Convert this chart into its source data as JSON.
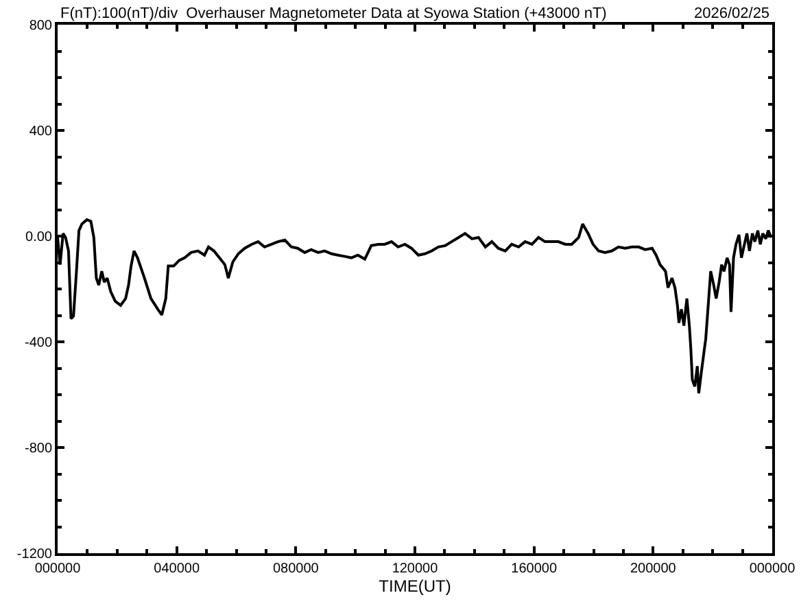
{
  "chart_data": {
    "type": "line",
    "title": "F(nT):100(nT)/div  Overhauser Magnetometer Data at Syowa Station (+43000 nT)",
    "annotations": [
      "2026/02/25"
    ],
    "xlabel": "TIME(UT)",
    "xlim": [
      "2026-02-25T00:00",
      "2026-02-26T00:00"
    ],
    "xticks": [
      {
        "value": "2026-02-25T00:00",
        "label": "000000"
      },
      {
        "value": "2026-02-25T04:00",
        "label": "040000"
      },
      {
        "value": "2026-02-25T08:00",
        "label": "080000"
      },
      {
        "value": "2026-02-25T12:00",
        "label": "120000"
      },
      {
        "value": "2026-02-25T16:00",
        "label": "160000"
      },
      {
        "value": "2026-02-25T20:00",
        "label": "200000"
      },
      {
        "value": "2026-02-26T00:00",
        "label": "000000"
      }
    ],
    "ylim": [
      -1200,
      800
    ],
    "yticks": [
      800,
      400,
      {
        "value": 0,
        "label": "0.00"
      },
      -400,
      -800,
      -1200
    ],
    "marker": "none",
    "line_style": "solid",
    "x": [
      "2026-02-25T00:00",
      "2026-02-25T00:05",
      "2026-02-25T00:11",
      "2026-02-25T00:16",
      "2026-02-25T00:22",
      "2026-02-25T00:27",
      "2026-02-25T00:32",
      "2026-02-25T00:38",
      "2026-02-25T00:43",
      "2026-02-25T00:49",
      "2026-02-25T00:59",
      "2026-02-25T01:07",
      "2026-02-25T01:13",
      "2026-02-25T01:18",
      "2026-02-25T01:23",
      "2026-02-25T01:29",
      "2026-02-25T01:34",
      "2026-02-25T01:40",
      "2026-02-25T01:47",
      "2026-02-25T01:56",
      "2026-02-25T02:07",
      "2026-02-25T02:17",
      "2026-02-25T02:23",
      "2026-02-25T02:28",
      "2026-02-25T02:34",
      "2026-02-25T02:41",
      "2026-02-25T02:55",
      "2026-02-25T03:08",
      "2026-02-25T03:22",
      "2026-02-25T03:30",
      "2026-02-25T03:38",
      "2026-02-25T03:43",
      "2026-02-25T03:54",
      "2026-02-25T04:05",
      "2026-02-25T04:16",
      "2026-02-25T04:29",
      "2026-02-25T04:43",
      "2026-02-25T04:56",
      "2026-02-25T05:04",
      "2026-02-25T05:15",
      "2026-02-25T05:26",
      "2026-02-25T05:37",
      "2026-02-25T05:44",
      "2026-02-25T05:53",
      "2026-02-25T06:04",
      "2026-02-25T06:17",
      "2026-02-25T06:31",
      "2026-02-25T06:44",
      "2026-02-25T06:57",
      "2026-02-25T07:11",
      "2026-02-25T07:24",
      "2026-02-25T07:38",
      "2026-02-25T07:51",
      "2026-02-25T08:04",
      "2026-02-25T08:18",
      "2026-02-25T08:31",
      "2026-02-25T08:45",
      "2026-02-25T08:58",
      "2026-02-25T09:12",
      "2026-02-25T09:25",
      "2026-02-25T09:39",
      "2026-02-25T09:52",
      "2026-02-25T10:05",
      "2026-02-25T10:19",
      "2026-02-25T10:27",
      "2026-02-25T10:32",
      "2026-02-25T10:46",
      "2026-02-25T10:59",
      "2026-02-25T11:13",
      "2026-02-25T11:26",
      "2026-02-25T11:40",
      "2026-02-25T11:53",
      "2026-02-25T12:07",
      "2026-02-25T12:20",
      "2026-02-25T12:34",
      "2026-02-25T12:47",
      "2026-02-25T13:01",
      "2026-02-25T13:14",
      "2026-02-25T13:28",
      "2026-02-25T13:41",
      "2026-02-25T13:55",
      "2026-02-25T14:08",
      "2026-02-25T14:22",
      "2026-02-25T14:35",
      "2026-02-25T14:48",
      "2026-02-25T15:02",
      "2026-02-25T15:15",
      "2026-02-25T15:29",
      "2026-02-25T15:42",
      "2026-02-25T15:56",
      "2026-02-25T16:09",
      "2026-02-25T16:22",
      "2026-02-25T16:36",
      "2026-02-25T16:49",
      "2026-02-25T17:03",
      "2026-02-25T17:16",
      "2026-02-25T17:30",
      "2026-02-25T17:38",
      "2026-02-25T17:49",
      "2026-02-25T17:59",
      "2026-02-25T18:10",
      "2026-02-25T18:23",
      "2026-02-25T18:37",
      "2026-02-25T18:50",
      "2026-02-25T19:04",
      "2026-02-25T19:17",
      "2026-02-25T19:31",
      "2026-02-25T19:44",
      "2026-02-25T19:58",
      "2026-02-25T20:06",
      "2026-02-25T20:14",
      "2026-02-25T20:25",
      "2026-02-25T20:30",
      "2026-02-25T20:38",
      "2026-02-25T20:44",
      "2026-02-25T20:49",
      "2026-02-25T20:52",
      "2026-02-25T20:57",
      "2026-02-25T21:02",
      "2026-02-25T21:08",
      "2026-02-25T21:13",
      "2026-02-25T21:16",
      "2026-02-25T21:19",
      "2026-02-25T21:24",
      "2026-02-25T21:29",
      "2026-02-25T21:32",
      "2026-02-25T21:37",
      "2026-02-25T21:43",
      "2026-02-25T21:46",
      "2026-02-25T21:51",
      "2026-02-25T21:56",
      "2026-02-25T22:02",
      "2026-02-25T22:07",
      "2026-02-25T22:13",
      "2026-02-25T22:18",
      "2026-02-25T22:23",
      "2026-02-25T22:29",
      "2026-02-25T22:34",
      "2026-02-25T22:37",
      "2026-02-25T22:42",
      "2026-02-25T22:47",
      "2026-02-25T22:53",
      "2026-02-25T22:58",
      "2026-02-25T23:04",
      "2026-02-25T23:09",
      "2026-02-25T23:14",
      "2026-02-25T23:20",
      "2026-02-25T23:25",
      "2026-02-25T23:31",
      "2026-02-25T23:36",
      "2026-02-25T23:41",
      "2026-02-25T23:47",
      "2026-02-25T23:52",
      "2026-02-25T23:58"
    ],
    "series": [
      {
        "color": "#000000",
        "values": [
          -5,
          -108,
          10,
          -5,
          -56,
          -313,
          -303,
          -133,
          21,
          46,
          62,
          56,
          -5,
          -159,
          -185,
          -133,
          -174,
          -159,
          -210,
          -246,
          -262,
          -236,
          -185,
          -113,
          -56,
          -82,
          -159,
          -236,
          -277,
          -298,
          -236,
          -113,
          -113,
          -92,
          -82,
          -62,
          -56,
          -72,
          -41,
          -56,
          -82,
          -108,
          -159,
          -98,
          -67,
          -46,
          -31,
          -21,
          -41,
          -31,
          -21,
          -15,
          -41,
          -46,
          -62,
          -51,
          -62,
          -56,
          -67,
          -72,
          -77,
          -82,
          -72,
          -87,
          -56,
          -36,
          -31,
          -31,
          -21,
          -41,
          -31,
          -46,
          -72,
          -67,
          -56,
          -41,
          -36,
          -21,
          -5,
          10,
          -10,
          -5,
          -41,
          -21,
          -46,
          -56,
          -31,
          -41,
          -21,
          -31,
          -5,
          -21,
          -21,
          -21,
          -31,
          -31,
          -5,
          46,
          10,
          -31,
          -56,
          -62,
          -56,
          -41,
          -46,
          -41,
          -41,
          -51,
          -46,
          -72,
          -108,
          -133,
          -195,
          -159,
          -195,
          -262,
          -328,
          -277,
          -339,
          -236,
          -339,
          -426,
          -544,
          -569,
          -492,
          -595,
          -518,
          -431,
          -390,
          -262,
          -133,
          -185,
          -236,
          -174,
          -108,
          -133,
          -82,
          -108,
          -287,
          -82,
          -31,
          5,
          -82,
          -31,
          10,
          -56,
          10,
          -21,
          21,
          -31,
          10,
          -10,
          21,
          -5
        ]
      }
    ]
  }
}
